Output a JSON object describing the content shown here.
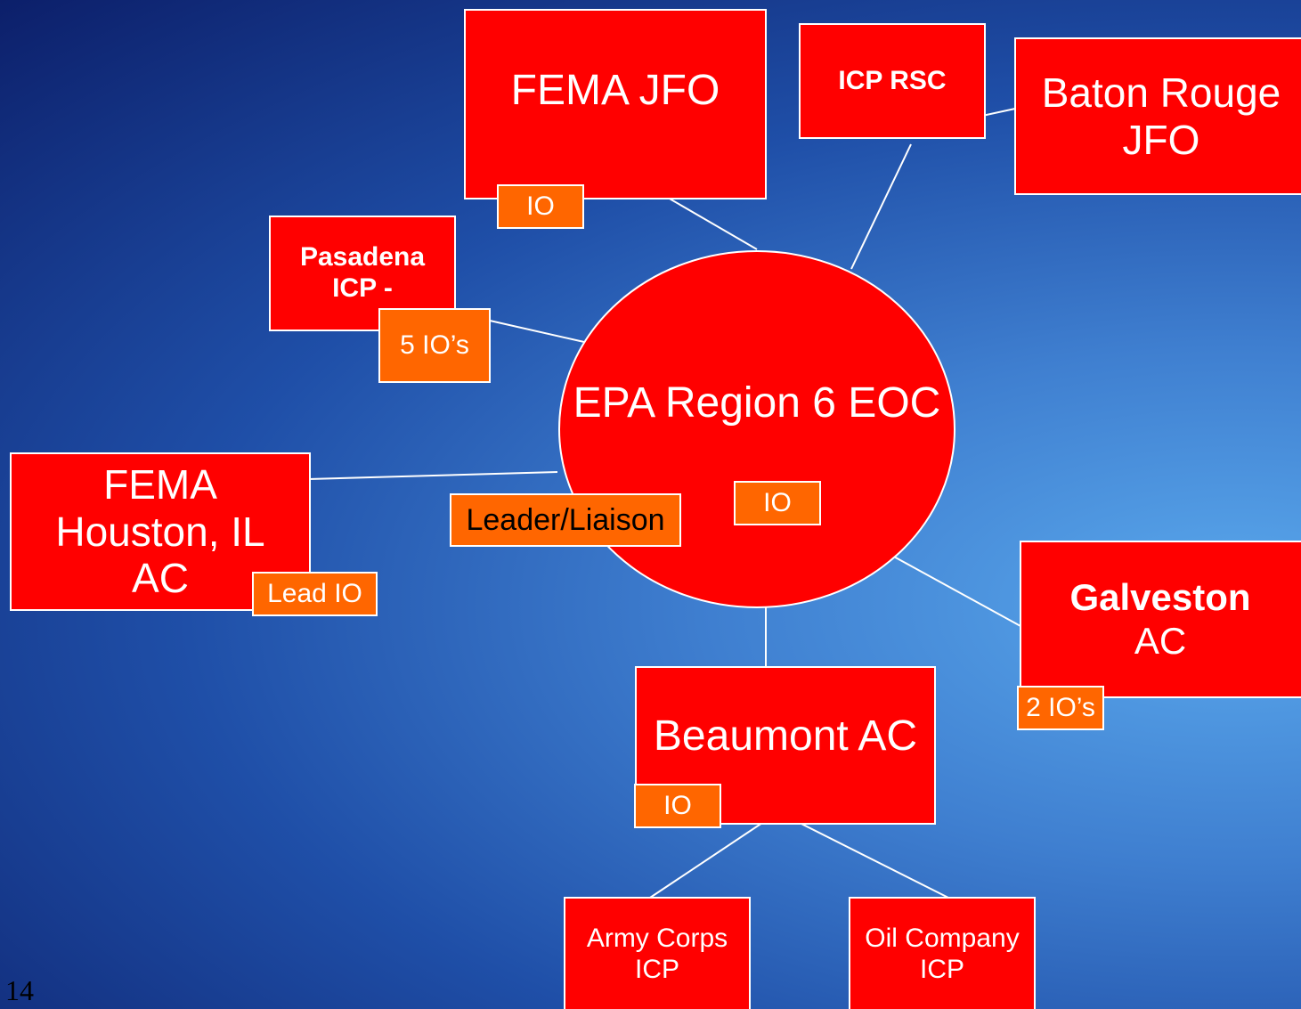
{
  "center": {
    "label": "EPA Region 6 EOC",
    "badge": "IO",
    "leader": "Leader/Liaison"
  },
  "nodes": [
    {
      "label": "FEMA JFO",
      "badge": "IO"
    },
    {
      "label": "ICP RSC"
    },
    {
      "label": "Baton Rouge JFO"
    },
    {
      "label": "Pasadena ICP -",
      "badge": "5 IO’s"
    },
    {
      "label": "FEMA Houston, IL AC",
      "badge": "Lead IO"
    },
    {
      "label": "Galveston",
      "sublabel": "AC",
      "badge": "2 IO’s"
    },
    {
      "label": "Beaumont AC",
      "badge": "IO"
    },
    {
      "label": "Army Corps ICP"
    },
    {
      "label": "Oil Company ICP"
    }
  ],
  "page_number": "14"
}
